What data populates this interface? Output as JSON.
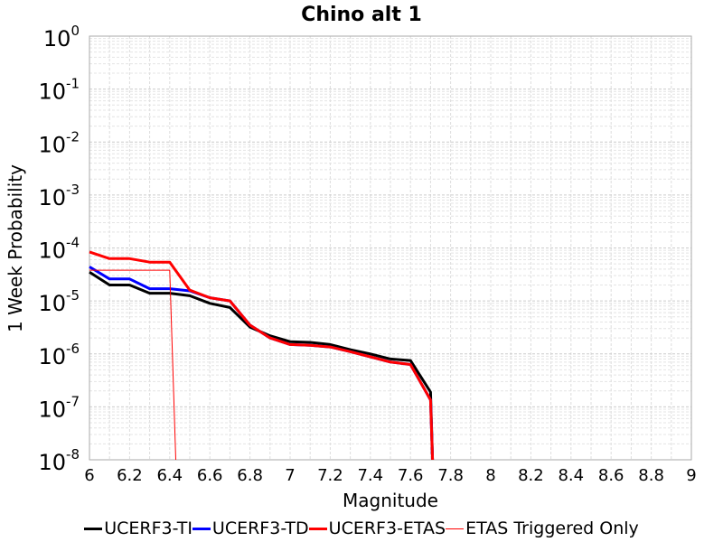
{
  "chart_data": {
    "type": "line",
    "title": "Chino alt 1",
    "xlabel": "Magnitude",
    "ylabel": "1 Week Probability",
    "xlim": [
      6,
      9
    ],
    "ylim": [
      1e-08,
      1
    ],
    "y_scale": "log",
    "grid": true,
    "legend_position": "bottom",
    "x_ticks": [
      "6",
      "6.2",
      "6.4",
      "6.6",
      "6.8",
      "7",
      "7.2",
      "7.4",
      "7.6",
      "7.8",
      "8",
      "8.2",
      "8.4",
      "8.6",
      "8.8",
      "9"
    ],
    "y_ticks": [
      {
        "base": "10",
        "exp": "0"
      },
      {
        "base": "10",
        "exp": "-1"
      },
      {
        "base": "10",
        "exp": "-2"
      },
      {
        "base": "10",
        "exp": "-3"
      },
      {
        "base": "10",
        "exp": "-4"
      },
      {
        "base": "10",
        "exp": "-5"
      },
      {
        "base": "10",
        "exp": "-6"
      },
      {
        "base": "10",
        "exp": "-7"
      },
      {
        "base": "10",
        "exp": "-8"
      }
    ],
    "series": [
      {
        "name": "UCERF3-TI",
        "color": "#000000",
        "width": 3,
        "x": [
          6.0,
          6.1,
          6.2,
          6.3,
          6.4,
          6.5,
          6.6,
          6.7,
          6.8,
          6.9,
          7.0,
          7.1,
          7.2,
          7.3,
          7.4,
          7.5,
          7.6,
          7.7,
          7.71
        ],
        "y": [
          3.5e-05,
          2e-05,
          2e-05,
          1.4e-05,
          1.4e-05,
          1.25e-05,
          9e-06,
          7.5e-06,
          3.2e-06,
          2.2e-06,
          1.7e-06,
          1.65e-06,
          1.5e-06,
          1.2e-06,
          1e-06,
          8e-07,
          7.5e-07,
          1.9e-07,
          1e-08
        ]
      },
      {
        "name": "UCERF3-TD",
        "color": "#0000ff",
        "width": 3,
        "x": [
          6.0,
          6.1,
          6.2,
          6.3,
          6.4,
          6.5,
          6.6,
          6.7,
          6.8,
          6.9,
          7.0,
          7.1,
          7.2,
          7.3,
          7.4,
          7.5,
          7.6,
          7.7,
          7.71
        ],
        "y": [
          4.4e-05,
          2.6e-05,
          2.6e-05,
          1.7e-05,
          1.7e-05,
          1.55e-05,
          1.15e-05,
          1e-05,
          3.5e-06,
          2e-06,
          1.5e-06,
          1.45e-06,
          1.35e-06,
          1.1e-06,
          8.8e-07,
          7e-07,
          6.3e-07,
          1.35e-07,
          1e-08
        ]
      },
      {
        "name": "UCERF3-ETAS",
        "color": "#ff0000",
        "width": 3,
        "x": [
          6.0,
          6.1,
          6.2,
          6.3,
          6.4,
          6.5,
          6.6,
          6.7,
          6.8,
          6.9,
          7.0,
          7.1,
          7.2,
          7.3,
          7.4,
          7.5,
          7.6,
          7.7,
          7.71
        ],
        "y": [
          8.4e-05,
          6.3e-05,
          6.3e-05,
          5.4e-05,
          5.4e-05,
          1.6e-05,
          1.15e-05,
          1e-05,
          3.5e-06,
          2e-06,
          1.5e-06,
          1.45e-06,
          1.35e-06,
          1.1e-06,
          8.8e-07,
          7e-07,
          6.3e-07,
          1.35e-07,
          1e-08
        ]
      },
      {
        "name": "ETAS Triggered Only",
        "color": "#ff0000",
        "width": 1,
        "x": [
          6.0,
          6.1,
          6.2,
          6.3,
          6.4,
          6.43
        ],
        "y": [
          3.8e-05,
          3.8e-05,
          3.8e-05,
          3.8e-05,
          3.8e-05,
          1e-08
        ]
      }
    ]
  }
}
